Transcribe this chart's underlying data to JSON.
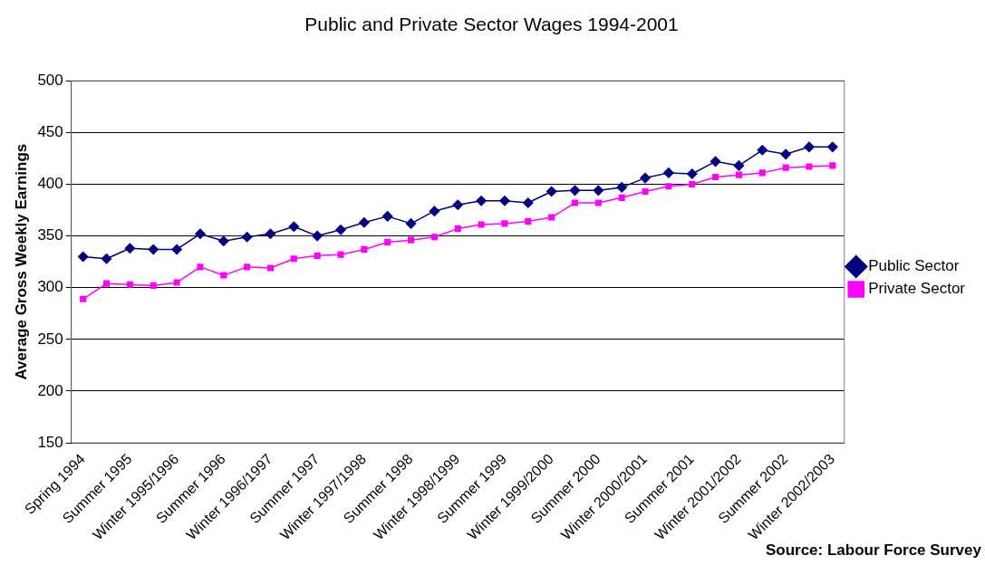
{
  "chart_data": {
    "type": "line",
    "title": "Public and Private Sector Wages 1994-2001",
    "ylabel": "Average Gross Weekly Earnings",
    "categories": [
      "Spring 1994",
      null,
      "Summer 1995",
      null,
      "Winter 1995/1996",
      null,
      "Summer 1996",
      null,
      "Winter 1996/1997",
      null,
      "Summer 1997",
      null,
      "Winter 1997/1998",
      null,
      "Summer 1998",
      null,
      "Winter 1998/1999",
      null,
      "Summer 1999",
      null,
      "Winter 1999/2000",
      null,
      "Summer 2000",
      null,
      "Winter 2000/2001",
      null,
      "Summer 2001",
      null,
      "Winter 2001/2002",
      null,
      "Summer 2002",
      null,
      "Winter 2002/2003"
    ],
    "series": [
      {
        "name": "Public Sector",
        "color": "#000080",
        "marker": "diamond",
        "values": [
          330,
          328,
          338,
          337,
          337,
          352,
          345,
          349,
          352,
          359,
          350,
          356,
          363,
          369,
          362,
          374,
          380,
          384,
          384,
          382,
          393,
          394,
          394,
          397,
          406,
          411,
          410,
          422,
          418,
          433,
          429,
          436,
          436
        ]
      },
      {
        "name": "Private Sector",
        "color": "#ff00ff",
        "marker": "square",
        "values": [
          289,
          304,
          303,
          302,
          305,
          320,
          312,
          320,
          319,
          328,
          331,
          332,
          337,
          344,
          346,
          349,
          357,
          361,
          362,
          364,
          368,
          382,
          382,
          387,
          393,
          398,
          400,
          407,
          409,
          411,
          416,
          417,
          418
        ]
      }
    ],
    "ylim": [
      150,
      500
    ],
    "yticks": [
      150,
      200,
      250,
      300,
      350,
      400,
      450,
      500
    ],
    "grid": "y",
    "legend": "right",
    "annotations": [
      "Source: Labour Force Survey"
    ]
  }
}
